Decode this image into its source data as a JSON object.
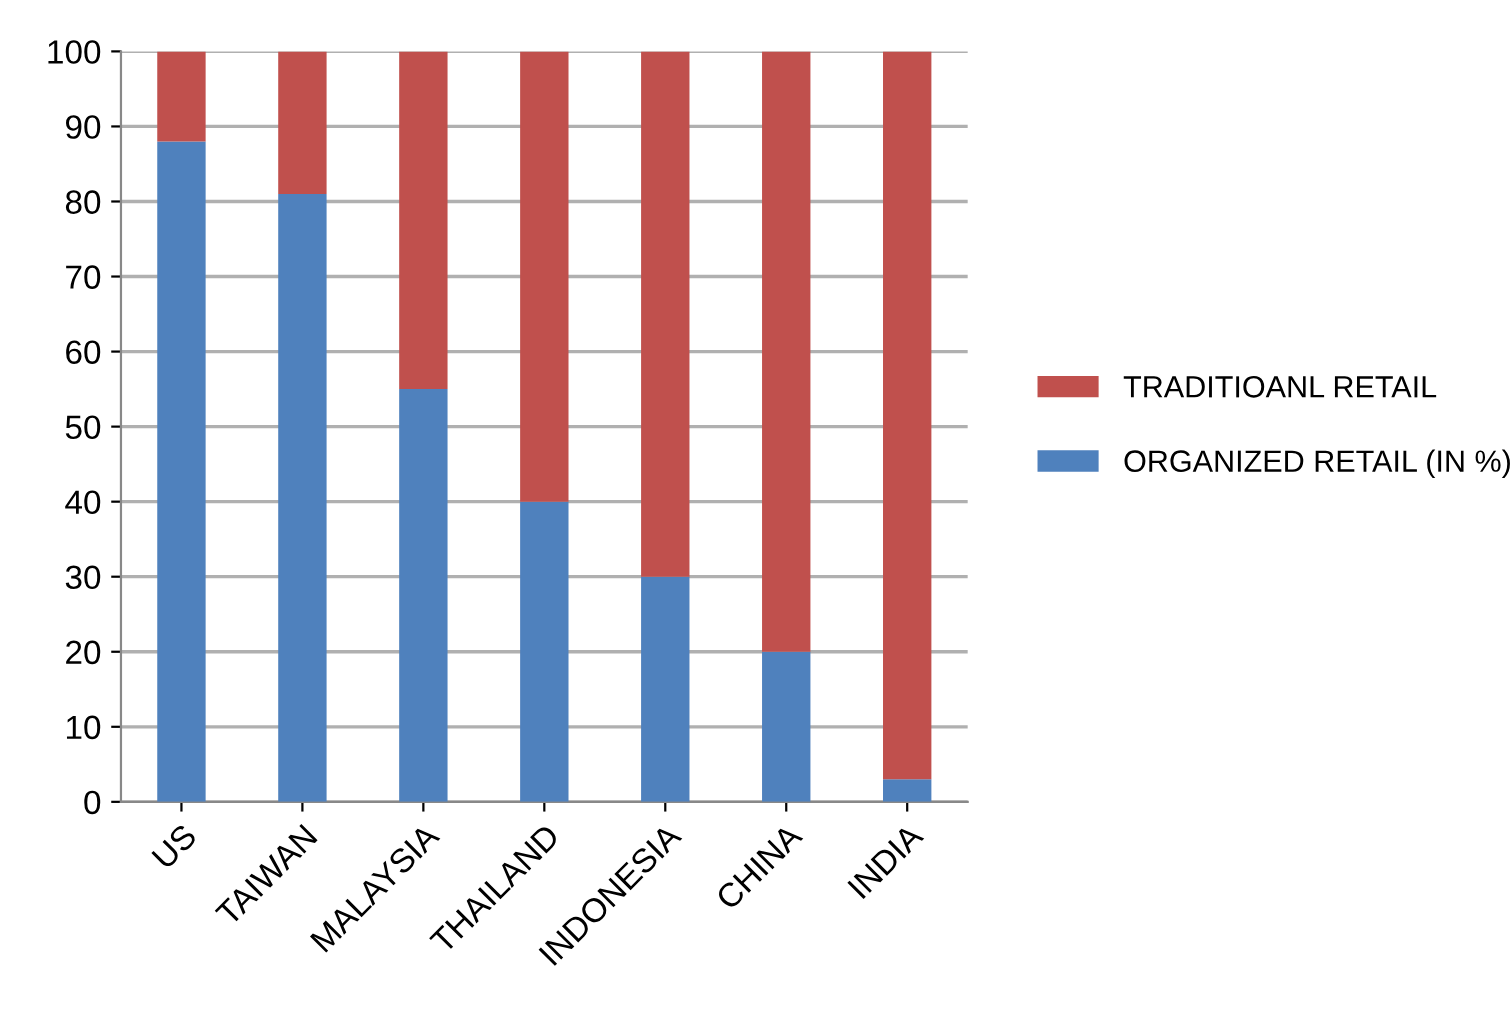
{
  "chart_data": {
    "type": "bar",
    "stacked": true,
    "categories": [
      "US",
      "TAIWAN",
      "MALAYSIA",
      "THAILAND",
      "INDONESIA",
      "CHINA",
      "INDIA"
    ],
    "series": [
      {
        "name": "ORGANIZED RETAIL (IN %)",
        "color": "#4f81bd",
        "values": [
          88,
          81,
          55,
          40,
          30,
          20,
          3
        ]
      },
      {
        "name": "TRADITIOANL RETAIL",
        "color": "#c0504d",
        "values": [
          12,
          19,
          45,
          60,
          70,
          80,
          97
        ]
      }
    ],
    "ylim": [
      0,
      100
    ],
    "yticks": [
      0,
      10,
      20,
      30,
      40,
      50,
      60,
      70,
      80,
      90,
      100
    ],
    "grid": "y",
    "legend": "right"
  }
}
